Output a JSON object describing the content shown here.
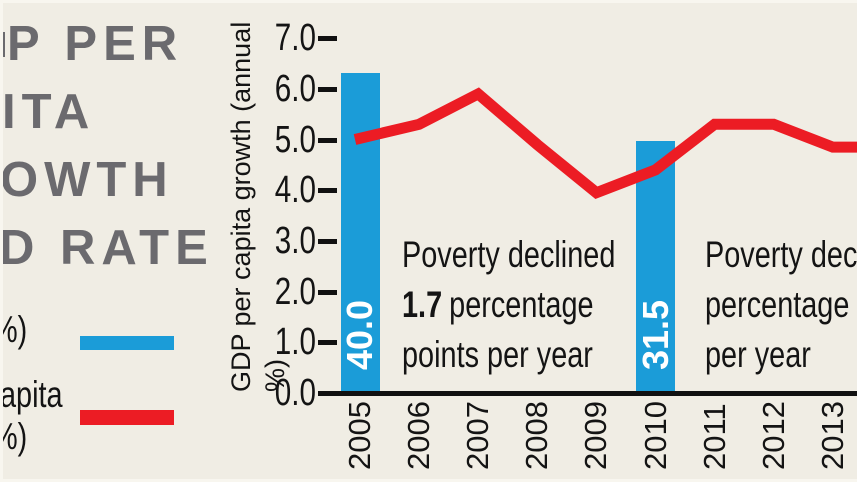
{
  "title": {
    "visible_lines": [
      "P PER",
      "ITA",
      "OWTH",
      "D RATE"
    ],
    "color": "#6B6A6E"
  },
  "legend": {
    "items": [
      {
        "id": "poverty-rate-bars",
        "visible_label_lines": [
          "%)"
        ],
        "swatch_color": "#1B9CD8"
      },
      {
        "id": "gdp-per-capita-growth-line",
        "visible_label_lines": [
          "apita",
          "%)"
        ],
        "swatch_color": "#EC1C24"
      }
    ]
  },
  "chart_data": {
    "type": "combo bar+line",
    "title": "",
    "ylabel": "GDP per capita growth (annual %)",
    "ylim": [
      0.0,
      7.0
    ],
    "yticks": [
      "7.0",
      "6.0",
      "5.0",
      "4.0",
      "3.0",
      "2.0",
      "1.0",
      "0.0"
    ],
    "categories": [
      "2005",
      "2006",
      "2007",
      "2008",
      "2009",
      "2010",
      "2011",
      "2012",
      "2013"
    ],
    "grid": false,
    "legend_position": "left",
    "series": [
      {
        "name": "poverty-rate-bars",
        "type": "bar",
        "color": "#1B9CD8",
        "label_color": "#FFFFFF",
        "points": [
          {
            "year": "2005",
            "value": 40.0,
            "label": "40.0"
          },
          {
            "year": "2010",
            "value": 31.5,
            "label": "31.5"
          }
        ]
      },
      {
        "name": "gdp-per-capita-growth-line",
        "type": "line",
        "color": "#EC1C24",
        "values": [
          5.0,
          5.3,
          5.9,
          4.9,
          3.95,
          4.4,
          5.3,
          5.3,
          4.85
        ]
      }
    ],
    "annotations": [
      {
        "line1": "Poverty declined",
        "line2_bold": "1.7",
        "line2_rest": "percentage",
        "line3": "points per year"
      },
      {
        "line1": "Poverty decli",
        "line2": "percentage p",
        "line3": "per year"
      }
    ]
  },
  "colors": {
    "background": "#F0EDE4",
    "axis": "#111111",
    "text": "#141414"
  }
}
